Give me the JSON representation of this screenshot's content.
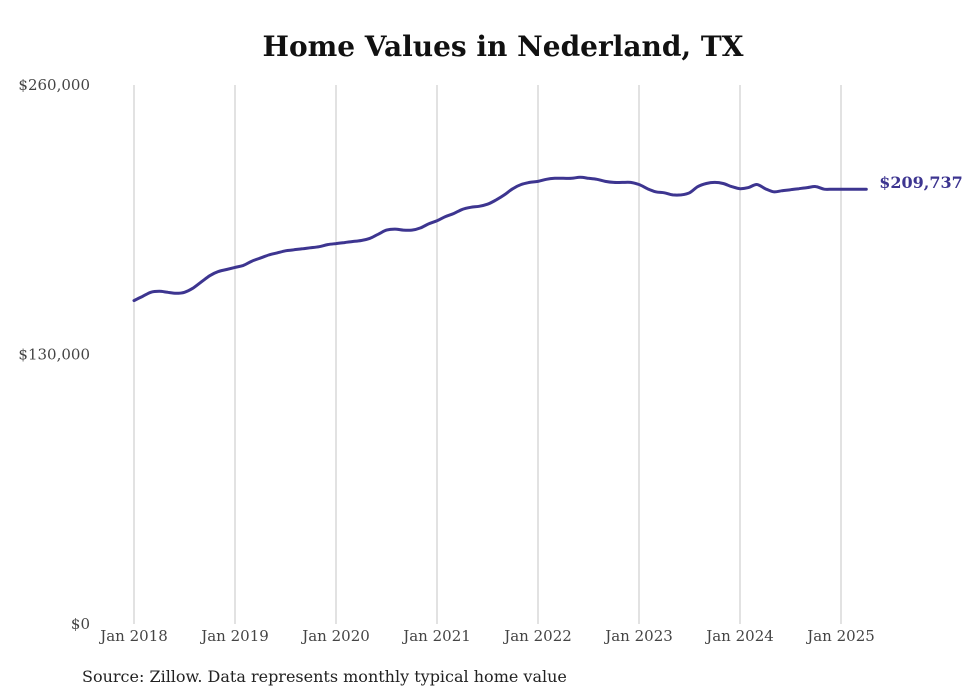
{
  "chart_data": {
    "type": "line",
    "title": "Home Values in Nederland, TX",
    "xlabel": "",
    "ylabel": "",
    "ylim": [
      0,
      260000
    ],
    "y_ticks": [
      "$260,000",
      "$130,000",
      "$0"
    ],
    "y_tick_values": [
      260000,
      130000,
      0
    ],
    "x_ticks": [
      "Jan 2018",
      "Jan 2019",
      "Jan 2020",
      "Jan 2021",
      "Jan 2022",
      "Jan 2023",
      "Jan 2024",
      "Jan 2025"
    ],
    "x_tick_values": [
      "2018-01",
      "2019-01",
      "2020-01",
      "2021-01",
      "2022-01",
      "2023-01",
      "2024-01",
      "2025-01"
    ],
    "grid": "vertical",
    "series": [
      {
        "color": "#3d3590",
        "end_label": "$209,737",
        "x": [
          "2018-01",
          "2018-02",
          "2018-03",
          "2018-04",
          "2018-05",
          "2018-06",
          "2018-07",
          "2018-08",
          "2018-09",
          "2018-10",
          "2018-11",
          "2018-12",
          "2019-01",
          "2019-02",
          "2019-03",
          "2019-04",
          "2019-05",
          "2019-06",
          "2019-07",
          "2019-08",
          "2019-09",
          "2019-10",
          "2019-11",
          "2019-12",
          "2020-01",
          "2020-02",
          "2020-03",
          "2020-04",
          "2020-05",
          "2020-06",
          "2020-07",
          "2020-08",
          "2020-09",
          "2020-10",
          "2020-11",
          "2020-12",
          "2021-01",
          "2021-02",
          "2021-03",
          "2021-04",
          "2021-05",
          "2021-06",
          "2021-07",
          "2021-08",
          "2021-09",
          "2021-10",
          "2021-11",
          "2021-12",
          "2022-01",
          "2022-02",
          "2022-03",
          "2022-04",
          "2022-05",
          "2022-06",
          "2022-07",
          "2022-08",
          "2022-09",
          "2022-10",
          "2022-11",
          "2022-12",
          "2023-01",
          "2023-02",
          "2023-03",
          "2023-04",
          "2023-05",
          "2023-06",
          "2023-07",
          "2023-08",
          "2023-09",
          "2023-10",
          "2023-11",
          "2023-12",
          "2024-01",
          "2024-02",
          "2024-03",
          "2024-04",
          "2024-05",
          "2024-06",
          "2024-07",
          "2024-08",
          "2024-09",
          "2024-10",
          "2024-11",
          "2024-12",
          "2025-01",
          "2025-02",
          "2025-03",
          "2025-04"
        ],
        "values": [
          156000,
          158000,
          160000,
          160500,
          160000,
          159500,
          160000,
          162000,
          165000,
          168000,
          170000,
          171000,
          172000,
          173000,
          175000,
          176500,
          178000,
          179000,
          180000,
          180500,
          181000,
          181500,
          182000,
          183000,
          183500,
          184000,
          184500,
          185000,
          186000,
          188000,
          190000,
          190500,
          190000,
          190000,
          191000,
          193000,
          194500,
          196500,
          198000,
          200000,
          201000,
          201500,
          202500,
          204500,
          207000,
          210000,
          212000,
          213000,
          213500,
          214500,
          215000,
          215000,
          215000,
          215500,
          215000,
          214500,
          213500,
          213000,
          213000,
          213000,
          212000,
          210000,
          208500,
          208000,
          207000,
          207000,
          208000,
          211000,
          212500,
          213000,
          212500,
          211000,
          210000,
          210500,
          212000,
          210000,
          208500,
          209000,
          209500,
          210000,
          210500,
          211000,
          209737,
          209737,
          209737,
          209737,
          209737,
          209737
        ]
      }
    ]
  },
  "source_note": "Source: Zillow. Data represents monthly typical home value"
}
